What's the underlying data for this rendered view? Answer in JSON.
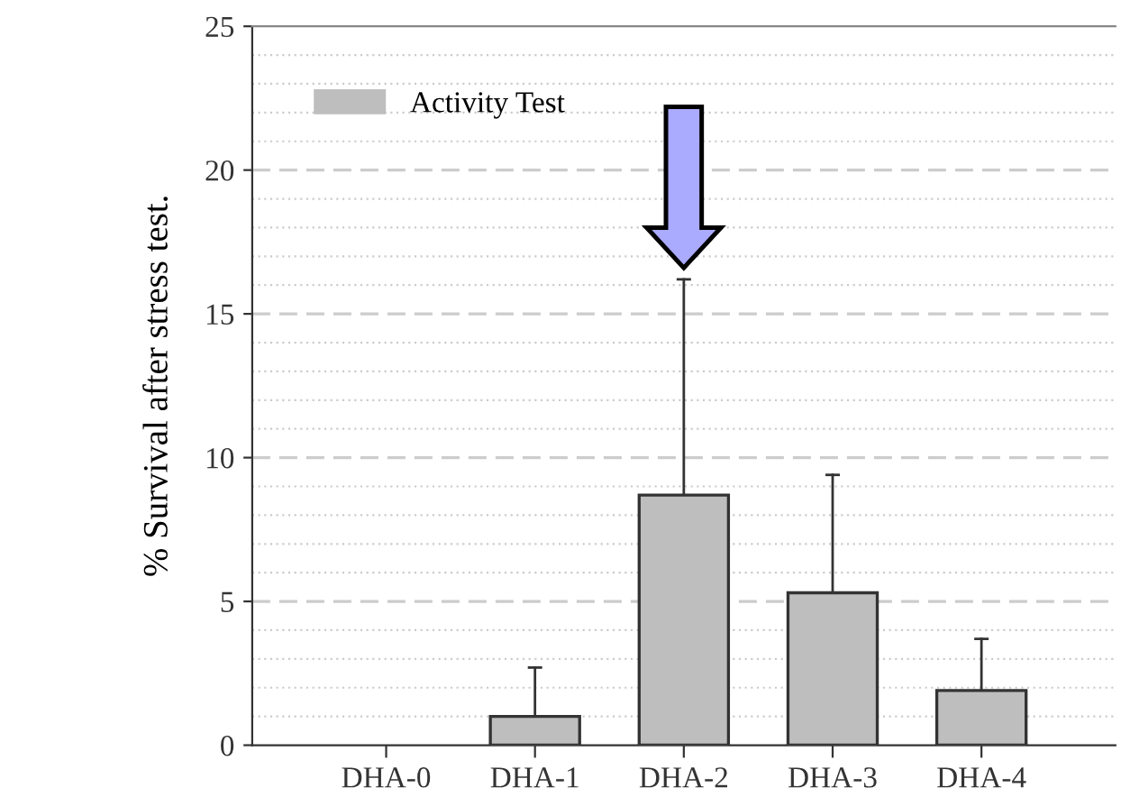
{
  "chart_data": {
    "type": "bar",
    "ylabel": "% Survival after stress test.",
    "categories": [
      "DHA-0",
      "DHA-1",
      "DHA-2",
      "DHA-3",
      "DHA-4"
    ],
    "series": [
      {
        "name": "Activity Test",
        "color": "#bebebe",
        "values": [
          0,
          1.0,
          8.7,
          5.3,
          1.9
        ],
        "errors": [
          null,
          [
            1.0,
            2.7
          ],
          [
            8.7,
            16.2
          ],
          [
            5.3,
            9.4
          ],
          [
            1.9,
            3.7
          ]
        ]
      }
    ],
    "ylim": [
      0,
      25
    ],
    "yticks": [
      0,
      5,
      10,
      15,
      20,
      25
    ],
    "grid": "y",
    "legend": "top left"
  }
}
